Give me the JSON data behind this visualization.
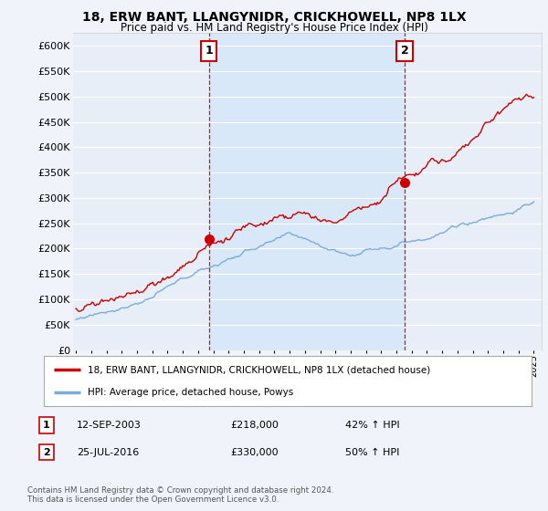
{
  "title": "18, ERW BANT, LLANGYNIDR, CRICKHOWELL, NP8 1LX",
  "subtitle": "Price paid vs. HM Land Registry's House Price Index (HPI)",
  "ylabel_ticks": [
    "£0",
    "£50K",
    "£100K",
    "£150K",
    "£200K",
    "£250K",
    "£300K",
    "£350K",
    "£400K",
    "£450K",
    "£500K",
    "£550K",
    "£600K"
  ],
  "ytick_values": [
    0,
    50000,
    100000,
    150000,
    200000,
    250000,
    300000,
    350000,
    400000,
    450000,
    500000,
    550000,
    600000
  ],
  "ylim": [
    0,
    625000
  ],
  "background_color": "#f0f4fa",
  "plot_bg_color": "#e8eef8",
  "highlight_bg_color": "#d8e8f8",
  "grid_color": "#ffffff",
  "red_line_color": "#cc0000",
  "blue_line_color": "#7aabdc",
  "sale1_x": 2003.7,
  "sale1_y": 218000,
  "sale2_x": 2016.55,
  "sale2_y": 330000,
  "sale1_label": "1",
  "sale2_label": "2",
  "sale1_date": "12-SEP-2003",
  "sale1_price": "£218,000",
  "sale1_hpi": "42% ↑ HPI",
  "sale2_date": "25-JUL-2016",
  "sale2_price": "£330,000",
  "sale2_hpi": "50% ↑ HPI",
  "legend_label1": "18, ERW BANT, LLANGYNIDR, CRICKHOWELL, NP8 1LX (detached house)",
  "legend_label2": "HPI: Average price, detached house, Powys",
  "footer1": "Contains HM Land Registry data © Crown copyright and database right 2024.",
  "footer2": "This data is licensed under the Open Government Licence v3.0.",
  "xmin": 1994.8,
  "xmax": 2025.5
}
